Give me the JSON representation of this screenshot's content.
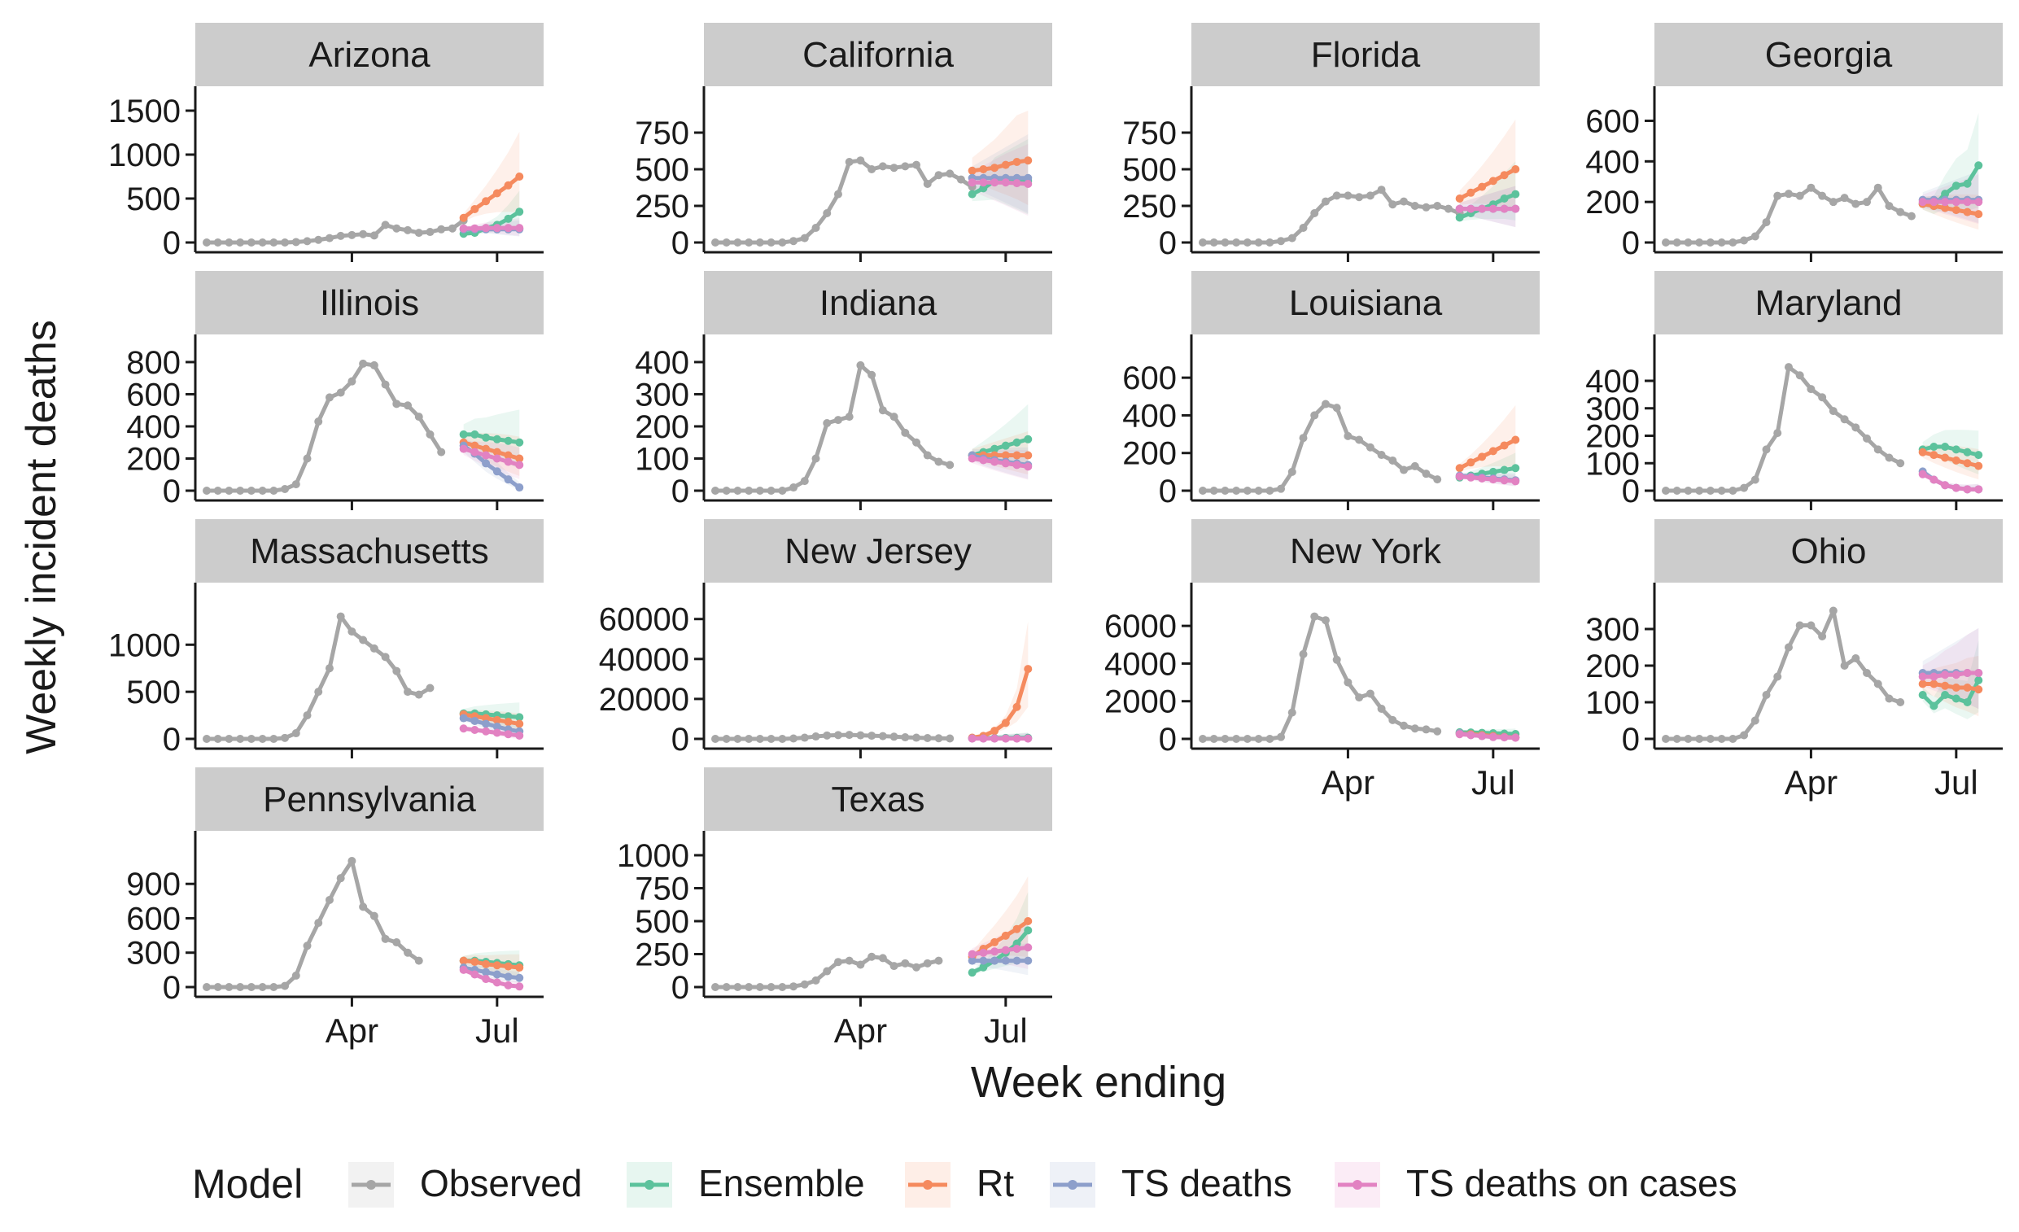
{
  "chart_data": {
    "type": "line",
    "ylabel": "Weekly incident deaths",
    "xlabel": "Week ending",
    "legend": {
      "title": "Model",
      "placement": "bottom",
      "entries": [
        {
          "name": "Observed",
          "color": "#a6a6a6"
        },
        {
          "name": "Ensemble",
          "color": "#5cc29c"
        },
        {
          "name": "Rt",
          "color": "#f58a5e"
        },
        {
          "name": "TS deaths",
          "color": "#8d9fcb"
        },
        {
          "name": "TS deaths on cases",
          "color": "#e282c2"
        }
      ]
    },
    "x_ticks": [
      {
        "label": "Apr",
        "week": 13
      },
      {
        "label": "Jul",
        "week": 26
      }
    ],
    "weeks": [
      0,
      1,
      2,
      3,
      4,
      5,
      6,
      7,
      8,
      9,
      10,
      11,
      12,
      13,
      14,
      15,
      16,
      17,
      18,
      19,
      20,
      21,
      22,
      23,
      24,
      25,
      26,
      27,
      28,
      29
    ],
    "forecast_weeks": [
      23,
      24,
      25,
      26,
      27,
      28,
      29
    ],
    "panels": [
      {
        "title": "Arizona",
        "ylim": [
          0,
          1500
        ],
        "yticks": [
          0,
          500,
          1000,
          1500
        ],
        "observed": [
          0,
          0,
          0,
          0,
          0,
          0,
          0,
          0,
          5,
          15,
          30,
          50,
          75,
          85,
          95,
          80,
          200,
          160,
          140,
          110,
          120,
          150,
          160,
          250
        ],
        "ensemble": [
          100,
          110,
          160,
          200,
          270,
          350
        ],
        "rt": [
          280,
          380,
          470,
          560,
          650,
          750
        ],
        "ts_deaths": [
          150,
          150,
          150,
          150,
          150,
          150
        ],
        "ts_cases": [
          160,
          160,
          165,
          165,
          165,
          165
        ]
      },
      {
        "title": "California",
        "ylim": [
          0,
          900
        ],
        "yticks": [
          0,
          250,
          500,
          750
        ],
        "observed": [
          0,
          0,
          0,
          0,
          0,
          0,
          0,
          10,
          30,
          100,
          200,
          330,
          550,
          560,
          500,
          520,
          510,
          520,
          530,
          400,
          460,
          470,
          430,
          380
        ],
        "ensemble": [
          330,
          370,
          420,
          420,
          420,
          420
        ],
        "rt": [
          490,
          500,
          510,
          530,
          550,
          560
        ],
        "ts_deaths": [
          440,
          440,
          440,
          440,
          440,
          440
        ],
        "ts_cases": [
          410,
          410,
          410,
          410,
          405,
          400
        ]
      },
      {
        "title": "Florida",
        "ylim": [
          0,
          900
        ],
        "yticks": [
          0,
          250,
          500,
          750
        ],
        "observed": [
          0,
          0,
          0,
          0,
          0,
          0,
          0,
          10,
          30,
          100,
          200,
          280,
          320,
          320,
          310,
          320,
          360,
          260,
          280,
          250,
          240,
          250,
          230,
          200
        ],
        "ensemble": [
          170,
          200,
          230,
          260,
          300,
          330
        ],
        "rt": [
          300,
          340,
          380,
          420,
          460,
          500
        ],
        "ts_deaths": [
          230,
          230,
          230,
          230,
          230,
          230
        ],
        "ts_cases": [
          230,
          230,
          230,
          230,
          230,
          230
        ]
      },
      {
        "title": "Georgia",
        "ylim": [
          0,
          650
        ],
        "yticks": [
          0,
          200,
          400,
          600
        ],
        "observed": [
          0,
          0,
          0,
          0,
          0,
          0,
          0,
          10,
          30,
          100,
          230,
          240,
          230,
          270,
          230,
          200,
          220,
          190,
          200,
          270,
          180,
          150,
          130
        ],
        "ensemble": [
          190,
          180,
          240,
          280,
          290,
          380
        ],
        "rt": [
          190,
          180,
          170,
          160,
          150,
          140
        ],
        "ts_deaths": [
          210,
          210,
          210,
          210,
          210,
          210
        ],
        "ts_cases": [
          200,
          200,
          200,
          200,
          200,
          200
        ]
      },
      {
        "title": "Illinois",
        "ylim": [
          0,
          820
        ],
        "yticks": [
          0,
          200,
          400,
          600,
          800
        ],
        "observed": [
          0,
          0,
          0,
          0,
          0,
          0,
          0,
          10,
          40,
          200,
          430,
          580,
          610,
          680,
          790,
          780,
          660,
          540,
          530,
          460,
          350,
          240
        ],
        "ensemble": [
          350,
          350,
          330,
          320,
          310,
          300
        ],
        "rt": [
          300,
          280,
          260,
          240,
          220,
          200
        ],
        "ts_deaths": [
          280,
          230,
          170,
          120,
          70,
          20
        ],
        "ts_cases": [
          260,
          240,
          220,
          200,
          180,
          160
        ]
      },
      {
        "title": "Indiana",
        "ylim": [
          0,
          410
        ],
        "yticks": [
          0,
          100,
          200,
          300,
          400
        ],
        "observed": [
          0,
          0,
          0,
          0,
          0,
          0,
          0,
          10,
          30,
          100,
          210,
          220,
          230,
          390,
          360,
          250,
          230,
          180,
          150,
          110,
          90,
          80
        ],
        "ensemble": [
          110,
          120,
          130,
          140,
          150,
          160
        ],
        "rt": [
          110,
          110,
          110,
          110,
          110,
          110
        ],
        "ts_deaths": [
          110,
          100,
          95,
          90,
          85,
          80
        ],
        "ts_cases": [
          100,
          95,
          90,
          85,
          80,
          75
        ]
      },
      {
        "title": "Louisiana",
        "ylim": [
          0,
          700
        ],
        "yticks": [
          0,
          200,
          400,
          600
        ],
        "observed": [
          0,
          0,
          0,
          0,
          0,
          0,
          0,
          10,
          100,
          280,
          400,
          460,
          440,
          290,
          270,
          230,
          190,
          160,
          110,
          130,
          90,
          60
        ],
        "ensemble": [
          70,
          80,
          90,
          100,
          110,
          120
        ],
        "rt": [
          120,
          150,
          180,
          210,
          240,
          270
        ],
        "ts_deaths": [
          80,
          75,
          70,
          65,
          60,
          55
        ],
        "ts_cases": [
          75,
          70,
          65,
          60,
          55,
          50
        ]
      },
      {
        "title": "Maryland",
        "ylim": [
          0,
          480
        ],
        "yticks": [
          0,
          100,
          200,
          300,
          400
        ],
        "observed": [
          0,
          0,
          0,
          0,
          0,
          0,
          0,
          10,
          40,
          150,
          210,
          450,
          420,
          370,
          340,
          290,
          260,
          230,
          190,
          150,
          120,
          100
        ],
        "ensemble": [
          150,
          160,
          160,
          150,
          140,
          130
        ],
        "rt": [
          140,
          130,
          120,
          110,
          100,
          90
        ],
        "ts_deaths": [
          70,
          40,
          20,
          10,
          5,
          5
        ],
        "ts_cases": [
          60,
          40,
          20,
          10,
          5,
          5
        ]
      },
      {
        "title": "Massachusetts",
        "ylim": [
          0,
          1400
        ],
        "yticks": [
          0,
          500,
          1000
        ],
        "observed": [
          0,
          0,
          0,
          0,
          0,
          0,
          0,
          10,
          60,
          250,
          500,
          750,
          1300,
          1140,
          1050,
          960,
          870,
          720,
          500,
          470,
          540
        ],
        "ensemble": [
          270,
          270,
          260,
          250,
          240,
          230
        ],
        "rt": [
          260,
          240,
          220,
          200,
          180,
          160
        ],
        "ts_deaths": [
          220,
          190,
          160,
          130,
          100,
          80
        ],
        "ts_cases": [
          110,
          95,
          80,
          65,
          50,
          35
        ]
      },
      {
        "title": "New Jersey",
        "ylim": [
          0,
          66000
        ],
        "yticks": [
          0,
          20000,
          40000,
          60000
        ],
        "observed": [
          0,
          0,
          0,
          0,
          0,
          0,
          0,
          200,
          600,
          1200,
          1700,
          1900,
          2000,
          1800,
          1600,
          1400,
          1100,
          800,
          600,
          400,
          300,
          200
        ],
        "ensemble": [
          300,
          350,
          400,
          450,
          500,
          550
        ],
        "rt": [
          600,
          1500,
          4000,
          8000,
          16000,
          35000
        ],
        "ts_deaths": [
          200,
          200,
          200,
          200,
          200,
          200
        ],
        "ts_cases": [
          150,
          150,
          150,
          150,
          150,
          150
        ]
      },
      {
        "title": "New York",
        "ylim": [
          0,
          7000
        ],
        "yticks": [
          0,
          2000,
          4000,
          6000
        ],
        "observed": [
          0,
          0,
          0,
          0,
          0,
          0,
          0,
          100,
          1400,
          4500,
          6500,
          6300,
          4200,
          3000,
          2200,
          2400,
          1600,
          1000,
          700,
          550,
          500,
          400
        ],
        "ensemble": [
          350,
          340,
          320,
          300,
          280,
          260
        ],
        "rt": [
          300,
          250,
          200,
          150,
          100,
          80
        ],
        "ts_deaths": [
          300,
          200,
          150,
          100,
          80,
          70
        ],
        "ts_cases": [
          250,
          200,
          150,
          100,
          80,
          60
        ]
      },
      {
        "title": "Ohio",
        "ylim": [
          0,
          360
        ],
        "yticks": [
          0,
          100,
          200,
          300
        ],
        "observed": [
          0,
          0,
          0,
          0,
          0,
          0,
          0,
          10,
          50,
          120,
          170,
          250,
          310,
          310,
          280,
          350,
          200,
          220,
          180,
          150,
          110,
          100
        ],
        "ensemble": [
          120,
          90,
          120,
          110,
          100,
          160
        ],
        "rt": [
          150,
          150,
          145,
          140,
          140,
          135
        ],
        "ts_deaths": [
          180,
          180,
          180,
          180,
          180,
          180
        ],
        "ts_cases": [
          170,
          170,
          175,
          175,
          180,
          180
        ]
      },
      {
        "title": "Pennsylvania",
        "ylim": [
          0,
          1150
        ],
        "yticks": [
          0,
          300,
          600,
          900
        ],
        "observed": [
          0,
          0,
          0,
          0,
          0,
          0,
          0,
          10,
          100,
          360,
          560,
          760,
          950,
          1100,
          700,
          620,
          420,
          390,
          300,
          230
        ],
        "ensemble": [
          230,
          230,
          220,
          210,
          200,
          190
        ],
        "rt": [
          230,
          220,
          200,
          190,
          180,
          170
        ],
        "ts_deaths": [
          170,
          150,
          130,
          110,
          90,
          80
        ],
        "ts_cases": [
          150,
          110,
          70,
          40,
          15,
          5
        ]
      },
      {
        "title": "Texas",
        "ylim": [
          0,
          1000
        ],
        "yticks": [
          0,
          250,
          500,
          750,
          1000
        ],
        "observed": [
          0,
          0,
          0,
          0,
          0,
          0,
          0,
          5,
          20,
          50,
          120,
          190,
          200,
          170,
          230,
          220,
          160,
          180,
          150,
          180,
          200
        ],
        "ensemble": [
          110,
          150,
          200,
          260,
          330,
          430
        ],
        "rt": [
          230,
          290,
          340,
          390,
          440,
          500
        ],
        "ts_deaths": [
          200,
          200,
          200,
          200,
          200,
          200
        ],
        "ts_cases": [
          250,
          260,
          270,
          280,
          290,
          300
        ]
      }
    ]
  }
}
